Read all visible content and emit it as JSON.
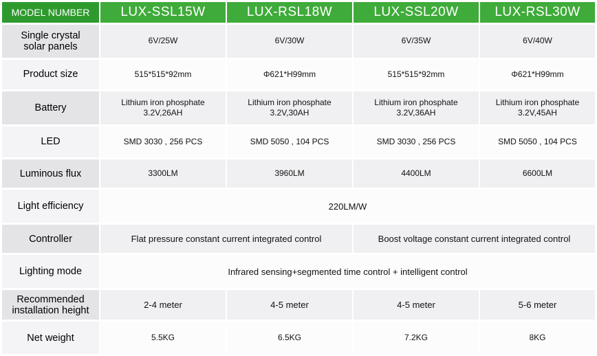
{
  "header": {
    "label": "MODEL NUMBER",
    "models": [
      "LUX-SSL15W",
      "LUX-RSL18W",
      "LUX-SSL20W",
      "LUX-RSL30W"
    ]
  },
  "rows": {
    "solar_panels": {
      "label_lines": [
        "Single crystal",
        "solar panels"
      ],
      "values": [
        "6V/25W",
        "6V/30W",
        "6V/35W",
        "6V/40W"
      ]
    },
    "product_size": {
      "label": "Product size",
      "values": [
        "515*515*92mm",
        "Φ621*H99mm",
        "515*515*92mm",
        "Φ621*H99mm"
      ]
    },
    "battery": {
      "label": "Battery",
      "values": [
        [
          "Lithium iron phosphate",
          "3.2V,26AH"
        ],
        [
          "Lithium iron phosphate",
          "3.2V,30AH"
        ],
        [
          "Lithium iron phosphate",
          "3.2V,36AH"
        ],
        [
          "Lithium iron phosphate",
          "3.2V,45AH"
        ]
      ]
    },
    "led": {
      "label": "LED",
      "values": [
        "SMD 3030 , 256 PCS",
        "SMD 5050 , 104 PCS",
        "SMD 3030 , 256 PCS",
        "SMD 5050 , 104 PCS"
      ]
    },
    "luminous_flux": {
      "label": "Luminous flux",
      "values": [
        "3300LM",
        "3960LM",
        "4400LM",
        "6600LM"
      ]
    },
    "light_efficiency": {
      "label": "Light efficiency",
      "value": "220LM/W"
    },
    "controller": {
      "label": "Controller",
      "values": [
        "Flat pressure constant current integrated control",
        "Boost voltage constant current integrated control"
      ]
    },
    "lighting_mode": {
      "label": "Lighting mode",
      "value": "Infrared sensing+segmented time control + intelligent control"
    },
    "installation_height": {
      "label_lines": [
        "Recommended",
        "installation height"
      ],
      "values": [
        "2-4 meter",
        "4-5 meter",
        "4-5 meter",
        "5-6 meter"
      ]
    },
    "net_weight": {
      "label": "Net weight",
      "values": [
        "5.5KG",
        "6.5KG",
        "7.2KG",
        "8KG"
      ]
    }
  },
  "colors": {
    "header_green": "#3fab3a",
    "header_label_green": "#2e9a2e",
    "row_gray": "#f0f0f2",
    "row_white": "#fcfcfd"
  }
}
